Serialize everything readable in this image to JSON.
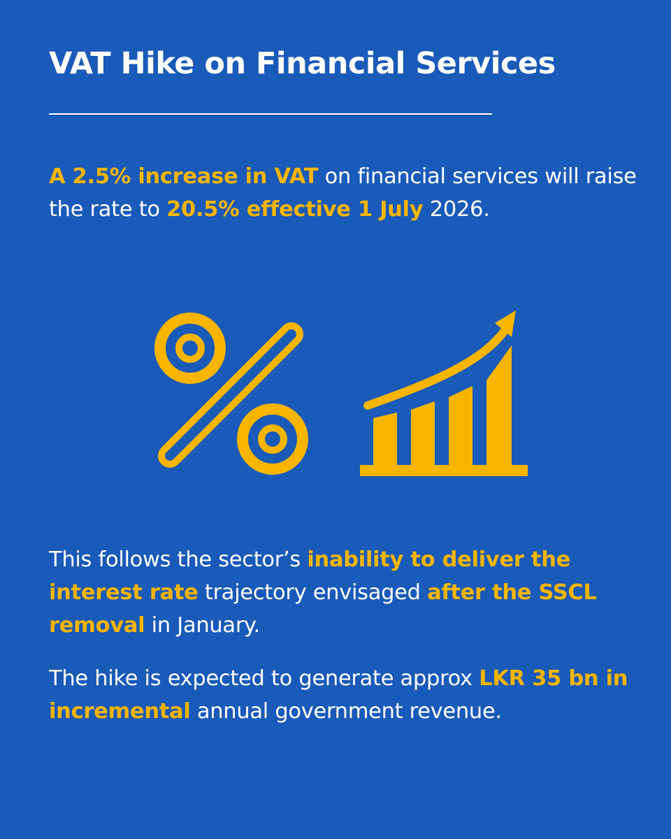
{
  "title": "VAT Hike on Financial Services",
  "colors": {
    "background": "#1a5ab8",
    "text": "#ffffff",
    "highlight": "#f7b500"
  },
  "icons": {
    "percent": "percent-icon",
    "chart": "growth-chart-icon"
  },
  "paragraph1": {
    "hl1": "A 2.5% increase in VAT",
    "t1": " on financial services will raise the rate to ",
    "hl2": "20.5% effective 1 July",
    "t2": " 2026."
  },
  "paragraph2": {
    "t1": "This follows the sector’s ",
    "hl1": "inability to deliver the interest rate",
    "t2": " trajectory envisaged ",
    "hl2": "after the SSCL removal",
    "t3": " in January."
  },
  "paragraph3": {
    "t1": "The hike is expected to generate approx ",
    "hl1": "LKR 35 bn in incremental",
    "t2": " annual government revenue."
  }
}
